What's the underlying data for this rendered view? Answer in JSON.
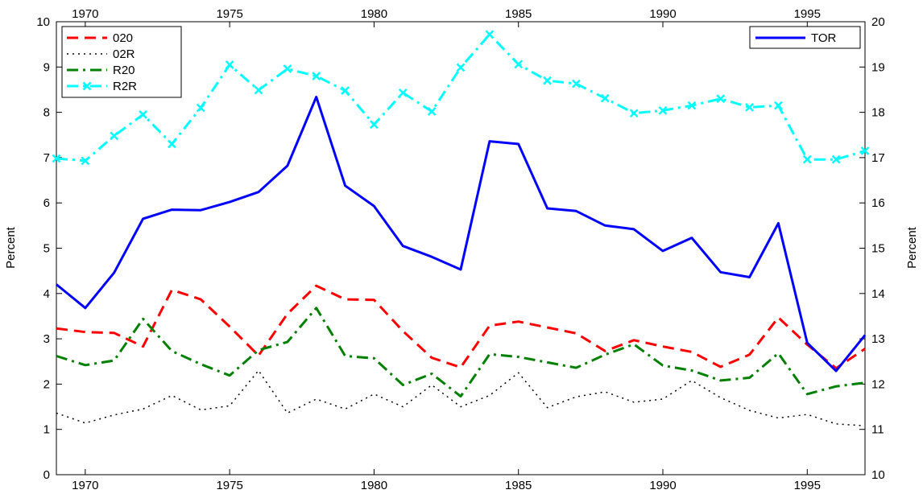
{
  "chart_data": {
    "type": "line",
    "title": "",
    "xlabel": "",
    "ylabel_left": "Percent",
    "ylabel_right": "Percent",
    "xlim": [
      1969,
      1997
    ],
    "ylim_left": [
      0,
      10
    ],
    "ylim_right": [
      10,
      20
    ],
    "x_ticks": [
      1970,
      1975,
      1980,
      1985,
      1990,
      1995
    ],
    "y_ticks_left": [
      0,
      1,
      2,
      3,
      4,
      5,
      6,
      7,
      8,
      9,
      10
    ],
    "y_ticks_right": [
      10,
      11,
      12,
      13,
      14,
      15,
      16,
      17,
      18,
      19,
      20
    ],
    "grid": false,
    "x": [
      1969,
      1970,
      1971,
      1972,
      1973,
      1974,
      1975,
      1976,
      1977,
      1978,
      1979,
      1980,
      1981,
      1982,
      1983,
      1984,
      1985,
      1986,
      1987,
      1988,
      1989,
      1990,
      1991,
      1992,
      1993,
      1994,
      1995,
      1996,
      1997
    ],
    "series_left": [
      {
        "name": "020",
        "color": "#ff0000",
        "style": "dashed",
        "values": [
          3.23,
          3.15,
          3.13,
          2.83,
          4.08,
          3.87,
          3.27,
          2.63,
          3.55,
          4.17,
          3.87,
          3.86,
          3.17,
          2.58,
          2.37,
          3.29,
          3.38,
          3.25,
          3.12,
          2.73,
          2.97,
          2.83,
          2.71,
          2.38,
          2.65,
          3.47,
          2.87,
          2.35,
          2.78
        ]
      },
      {
        "name": "02R",
        "color": "#000000",
        "style": "dotted",
        "values": [
          1.36,
          1.14,
          1.32,
          1.45,
          1.75,
          1.43,
          1.52,
          2.3,
          1.36,
          1.67,
          1.45,
          1.78,
          1.5,
          1.98,
          1.5,
          1.75,
          2.25,
          1.48,
          1.72,
          1.83,
          1.6,
          1.67,
          2.08,
          1.7,
          1.42,
          1.25,
          1.33,
          1.12,
          1.08
        ]
      },
      {
        "name": "R20",
        "color": "#008000",
        "style": "dashdot",
        "values": [
          2.62,
          2.42,
          2.52,
          3.44,
          2.73,
          2.44,
          2.19,
          2.75,
          2.93,
          3.68,
          2.62,
          2.57,
          1.98,
          2.23,
          1.73,
          2.66,
          2.6,
          2.48,
          2.36,
          2.65,
          2.88,
          2.41,
          2.3,
          2.08,
          2.14,
          2.68,
          1.78,
          1.95,
          2.03
        ]
      },
      {
        "name": "R2R",
        "color": "#00ffff",
        "style": "dashdot-x",
        "values": [
          6.98,
          6.93,
          7.48,
          7.95,
          7.3,
          8.1,
          9.05,
          8.49,
          8.96,
          8.8,
          8.48,
          7.73,
          8.43,
          8.02,
          8.99,
          9.72,
          9.06,
          8.7,
          8.63,
          8.31,
          7.98,
          8.04,
          8.15,
          8.3,
          8.11,
          8.15,
          6.96,
          6.96,
          7.15
        ]
      }
    ],
    "series_right": [
      {
        "name": "TOR",
        "color": "#0000ff",
        "style": "solid",
        "values": [
          14.2,
          13.68,
          14.46,
          15.65,
          15.85,
          15.84,
          16.02,
          16.24,
          16.82,
          18.34,
          16.38,
          15.93,
          15.05,
          14.81,
          14.53,
          17.36,
          17.3,
          15.88,
          15.82,
          15.5,
          15.42,
          14.94,
          15.23,
          14.47,
          14.36,
          15.55,
          12.91,
          12.29,
          13.08
        ]
      }
    ],
    "legend_left_position": "top-left",
    "legend_right_position": "top-right"
  }
}
